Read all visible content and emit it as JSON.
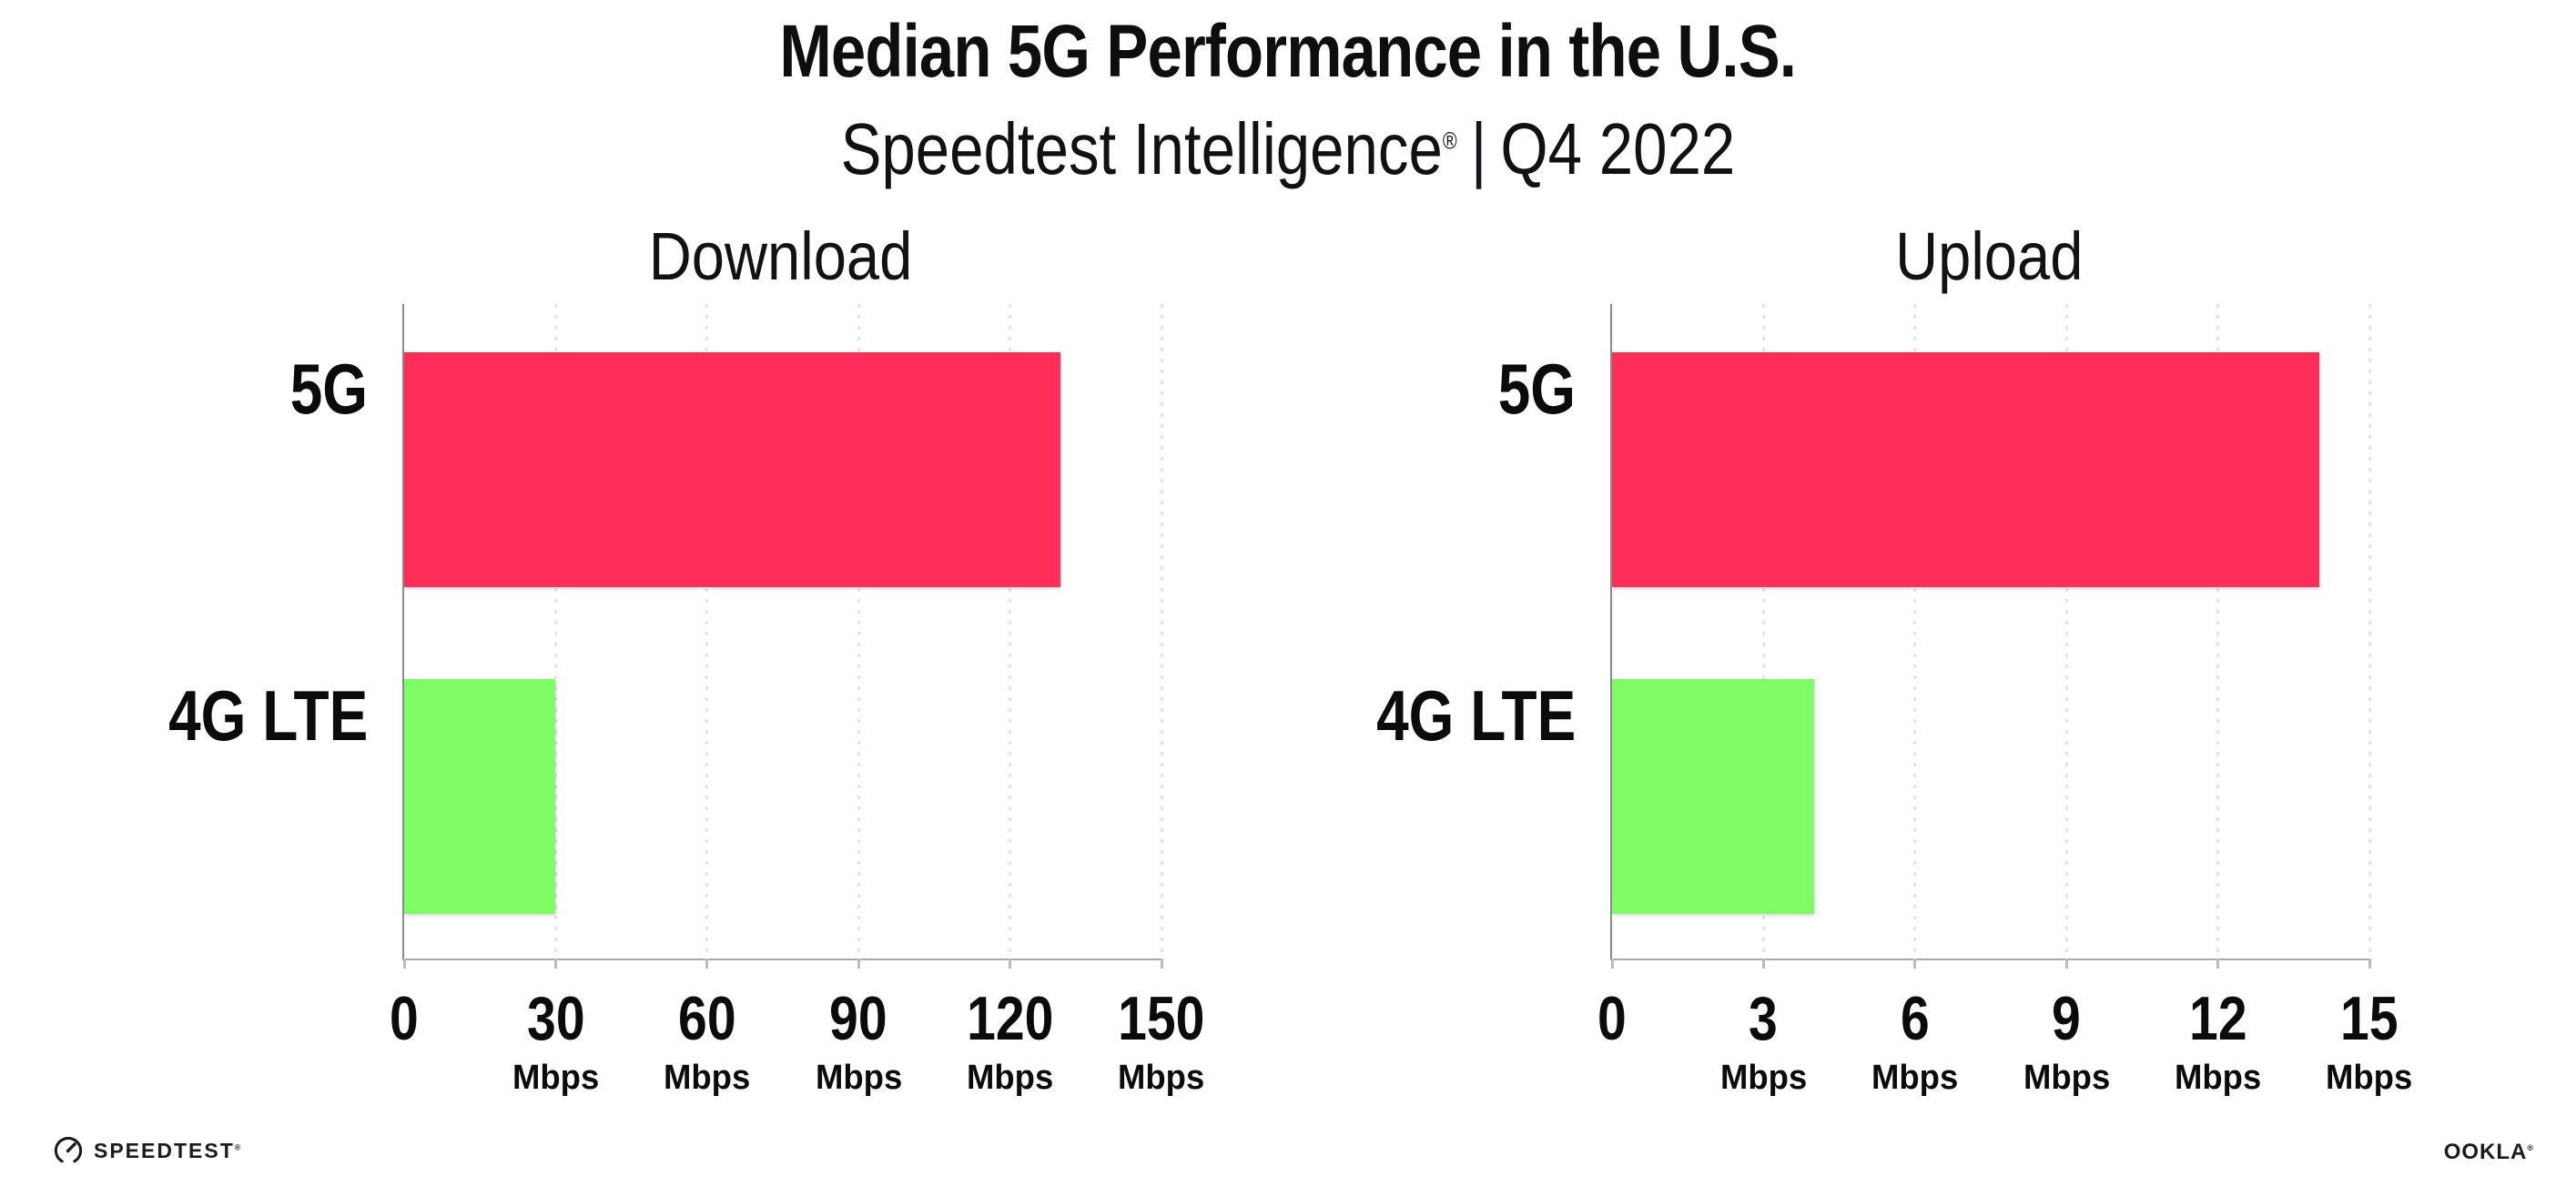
{
  "header": {
    "title": "Median 5G Performance in the U.S.",
    "subtitle": {
      "brand": "Speedtest Intelligence",
      "trademark": "®",
      "divider": "|",
      "period": "Q4 2022"
    }
  },
  "chart_data": [
    {
      "type": "bar",
      "orientation": "horizontal",
      "title": "Download",
      "categories": [
        "5G",
        "4G LTE"
      ],
      "values": [
        130,
        30
      ],
      "unit": "Mbps",
      "xlim": [
        0,
        150
      ],
      "ticks": [
        0,
        30,
        60,
        90,
        120,
        150
      ],
      "bar_colors": [
        "#FF2E58",
        "#80FC66"
      ],
      "grid": "dotted vertical gridlines at each tick",
      "legend": "none"
    },
    {
      "type": "bar",
      "orientation": "horizontal",
      "title": "Upload",
      "categories": [
        "5G",
        "4G LTE"
      ],
      "values": [
        14,
        4
      ],
      "unit": "Mbps",
      "xlim": [
        0,
        15
      ],
      "ticks": [
        0,
        3,
        6,
        9,
        12,
        15
      ],
      "bar_colors": [
        "#FF2E58",
        "#80FC66"
      ],
      "grid": "dotted vertical gridlines at each tick",
      "legend": "none"
    }
  ],
  "footer": {
    "speedtest_label": "SPEEDTEST",
    "speedtest_trademark": "®",
    "ookla_label": "OOKLA",
    "ookla_trademark": "®"
  },
  "colors": {
    "bar_5g": "#FF2E58",
    "bar_4g_lte": "#80FC66",
    "gridline_dots": "#E3E3EB",
    "axis_left": "#8B8B8E",
    "axis_bottom": "#A9A9AD",
    "text": "#0E0E10",
    "background": "#FFFFFF"
  }
}
